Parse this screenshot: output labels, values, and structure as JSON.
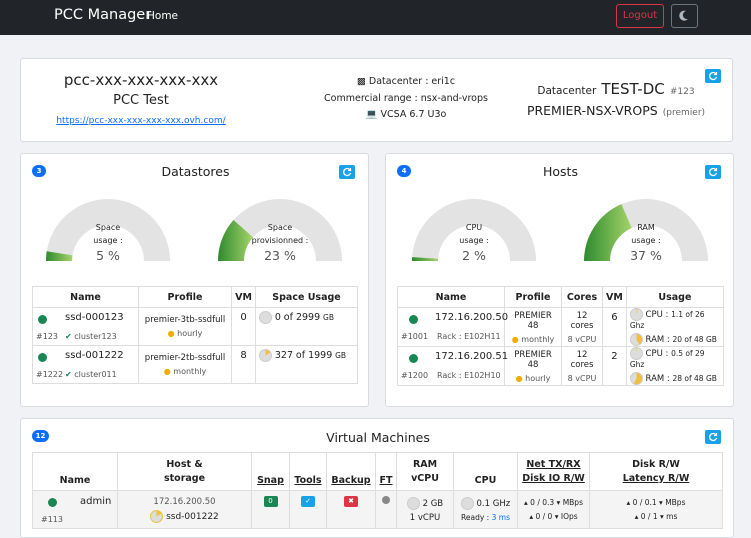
{
  "nav": {
    "brand": "PCC Manager",
    "home": "Home",
    "logout": "Logout"
  },
  "summary": {
    "pcc_name": "pcc-xxx-xxx-xxx-xxx",
    "pcc_desc": "PCC Test",
    "pcc_url": "https://pcc-xxx-xxx-xxx-xxx.ovh.com/",
    "datacenter": "Datacenter : eri1c",
    "range": "Commercial range : nsx-and-vrops",
    "vcsa": "VCSA 6.7 U3o",
    "dc_prefix": "Datacenter",
    "dc_name": "TEST-DC",
    "dc_id": "#123",
    "dc_range": "PREMIER-NSX-VROPS",
    "dc_range_tag": "(premier)"
  },
  "datastores": {
    "count": "3",
    "title": "Datastores",
    "gauge1": {
      "label1": "Space",
      "label2": "usage :",
      "value": "5 %",
      "fraction": 0.05
    },
    "gauge2": {
      "label1": "Space",
      "label2": "provisionned :",
      "value": "23 %",
      "fraction": 0.23
    },
    "headers": [
      "Name",
      "Profile",
      "VM",
      "Space Usage"
    ],
    "rows": [
      {
        "name": "ssd-000123",
        "id": "#123",
        "cluster": "cluster123",
        "profile": "premier-3tb-ssdfull",
        "billing": "hourly",
        "vm": "0",
        "usage": "0",
        "total": "of 2999",
        "unit": "GB",
        "fraction": 0.0
      },
      {
        "name": "ssd-001222",
        "id": "#1222",
        "cluster": "cluster011",
        "profile": "premier-2tb-ssdfull",
        "billing": "monthly",
        "vm": "8",
        "usage": "327",
        "total": "of 1999",
        "unit": "GB",
        "fraction": 0.16
      }
    ]
  },
  "hosts": {
    "count": "4",
    "title": "Hosts",
    "gauge1": {
      "label1": "CPU",
      "label2": "usage :",
      "value": "2 %",
      "fraction": 0.02
    },
    "gauge2": {
      "label1": "RAM",
      "label2": "usage :",
      "value": "37 %",
      "fraction": 0.37
    },
    "headers": [
      "Name",
      "Profile",
      "Cores",
      "VM",
      "Usage"
    ],
    "rows": [
      {
        "name": "172.16.200.50",
        "id": "#1001",
        "rack": "Rack : E102H11",
        "profile": "PREMIER 48",
        "billing": "monthly",
        "cores": "12 cores",
        "vcpu": "8 vCPU",
        "vm": "6",
        "cpu_label": "CPU :",
        "cpu_val": "1.1 of 26 Ghz",
        "ram_label": "RAM :",
        "ram_val": "20 of 48 GB"
      },
      {
        "name": "172.16.200.51",
        "id": "#1200",
        "rack": "Rack : E102H10",
        "profile": "PREMIER 48",
        "billing": "hourly",
        "cores": "12 cores",
        "vcpu": "8 vCPU",
        "vm": "2",
        "cpu_label": "CPU :",
        "cpu_val": "0.5 of 29 Ghz",
        "ram_label": "RAM :",
        "ram_val": "28 of 48 GB"
      }
    ]
  },
  "vms": {
    "count": "12",
    "title": "Virtual Machines",
    "headers": {
      "name": "Name",
      "host1": "Host &",
      "host2": "storage",
      "snap": "Snap",
      "tools": "Tools",
      "backup": "Backup",
      "ft": "FT",
      "ram1": "RAM",
      "ram2": "vCPU",
      "cpu": "CPU",
      "net1": "Net TX/RX",
      "net2": "Disk IO R/W",
      "disk1": "Disk R/W",
      "disk2": "Latency R/W"
    },
    "row": {
      "name": "admin",
      "id": "#113",
      "host": "172.16.200.50",
      "storage": "ssd-001222",
      "snap": "0",
      "ram": "2 GB",
      "vcpu": "1 vCPU",
      "cpu": "0.1 GHz",
      "ready_label": "Ready :",
      "ready_val": "3 ms",
      "net1": "▴ 0 / 0.3 ▾ MBps",
      "net2": "▴ 0 / 0 ▾ IOps",
      "disk1": "▴ 0 / 0.1 ▾ MBps",
      "disk2": "▴ 0 / 1 ▾ ms"
    }
  },
  "colors": {
    "accent": "#17a2e8",
    "green": "#198754",
    "gauge_fill": "#3a9a3a",
    "gauge_bg": "#e3e3e3"
  }
}
